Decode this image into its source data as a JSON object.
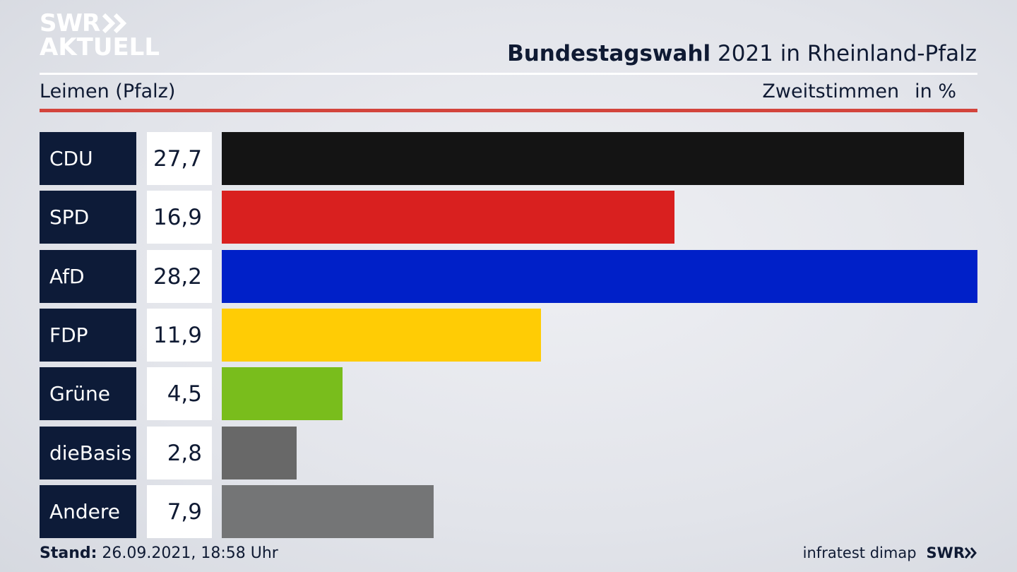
{
  "brand": {
    "line1": "SWR",
    "line2": "AKTUELL"
  },
  "header": {
    "title_bold": "Bundestagswahl",
    "title_rest": " 2021 in Rheinland-Pfalz",
    "subtitle": "Leimen (Pfalz)",
    "measure": "Zweitstimmen",
    "unit": "in %"
  },
  "chart_data": {
    "type": "bar",
    "orientation": "horizontal",
    "title": "Bundestagswahl 2021 in Rheinland-Pfalz",
    "subtitle": "Leimen (Pfalz)",
    "xlabel": "Zweitstimmen in %",
    "categories": [
      "CDU",
      "SPD",
      "AfD",
      "FDP",
      "Grüne",
      "dieBasis",
      "Andere"
    ],
    "value_labels": [
      "27,7",
      "16,9",
      "28,2",
      "11,9",
      "4,5",
      "2,8",
      "7,9"
    ],
    "values": [
      27.7,
      16.9,
      28.2,
      11.9,
      4.5,
      2.8,
      7.9
    ],
    "colors": [
      "#141414",
      "#d9201f",
      "#0020c8",
      "#ffcc05",
      "#79bd1c",
      "#686868",
      "#747576"
    ],
    "grid": false,
    "legend": "none"
  },
  "footer": {
    "stand_label": "Stand:",
    "stand_value": " 26.09.2021, 18:58 Uhr",
    "source": "infratest dimap",
    "logo": "SWR"
  }
}
